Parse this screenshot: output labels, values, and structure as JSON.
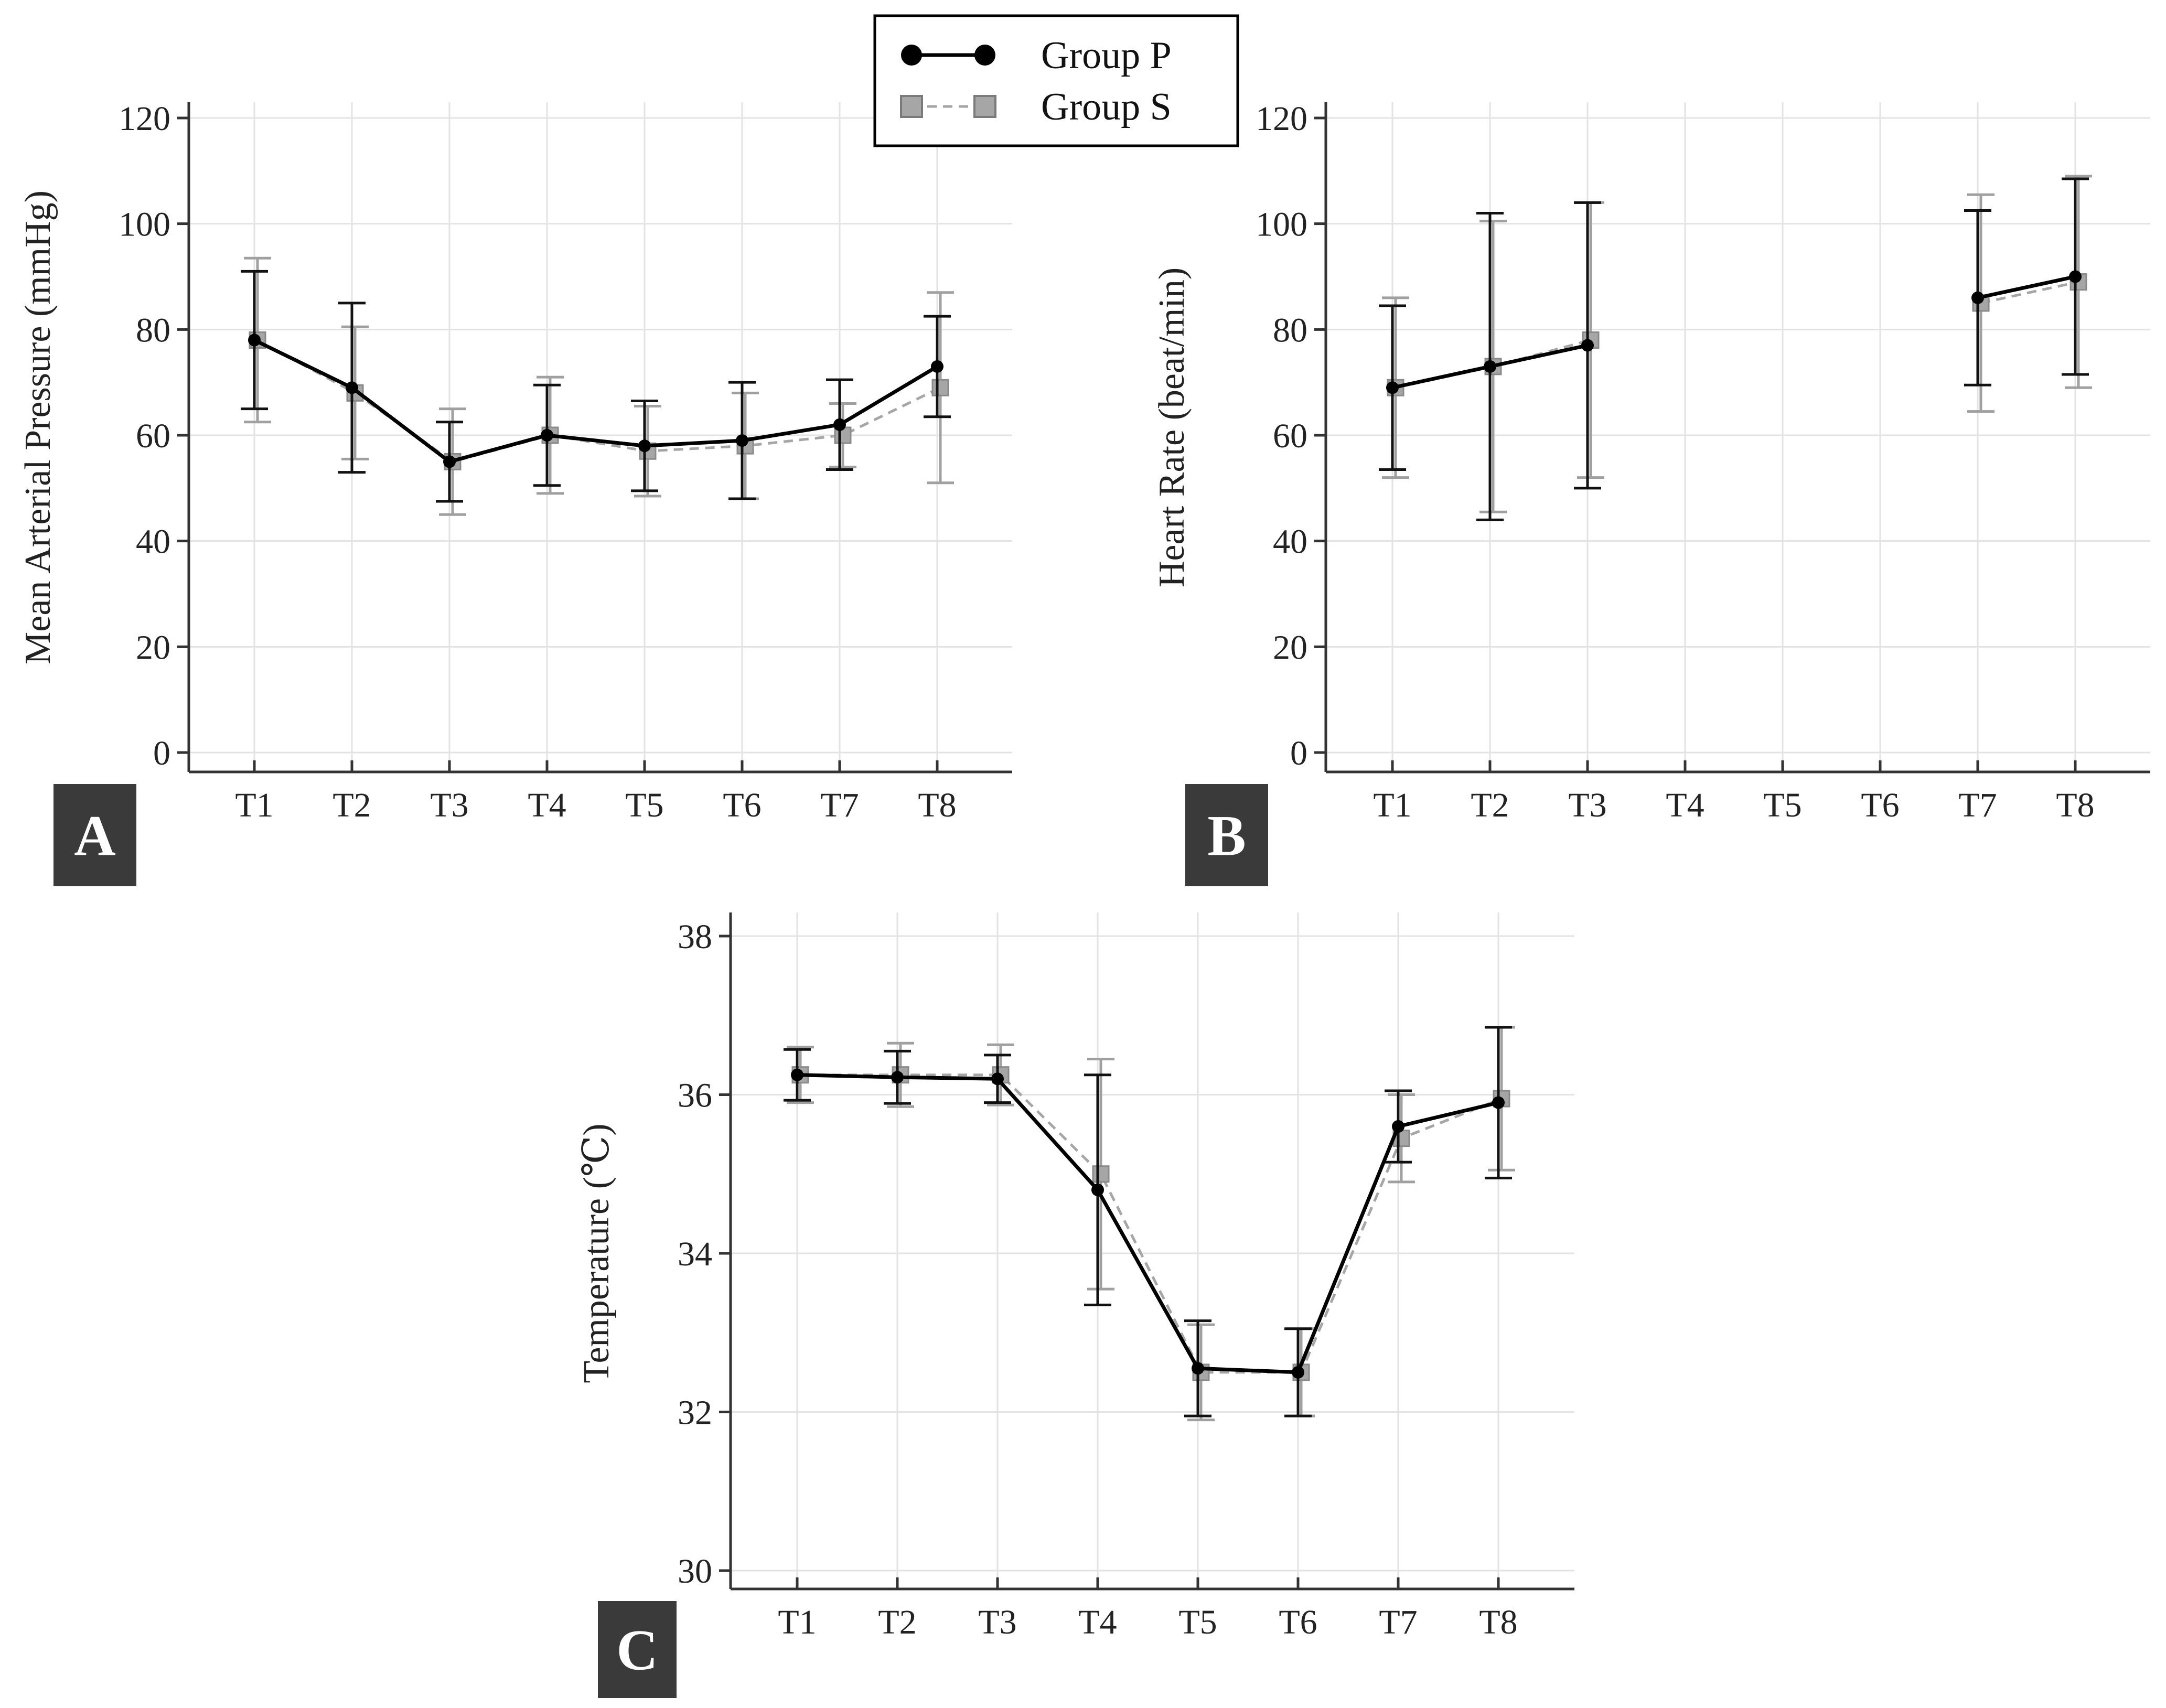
{
  "legend": {
    "items": [
      {
        "name": "Group P",
        "color": "#000000",
        "marker": "circle",
        "line": "solid"
      },
      {
        "name": "Group S",
        "color": "#a6a6a6",
        "marker": "square",
        "line": "dashed"
      }
    ]
  },
  "chart_data": [
    {
      "panel": "A",
      "type": "line",
      "ylabel": "Mean Arterial Pressure (mmHg)",
      "xlabel": "",
      "categories": [
        "T1",
        "T2",
        "T3",
        "T4",
        "T5",
        "T6",
        "T7",
        "T8"
      ],
      "ylim": [
        0,
        120
      ],
      "yticks": [
        0,
        20,
        40,
        60,
        80,
        100,
        120
      ],
      "grid": true,
      "series": [
        {
          "name": "Group P",
          "values": [
            78,
            69,
            55,
            60,
            58,
            59,
            62,
            73
          ],
          "err": [
            13,
            16,
            7.5,
            9.5,
            8.5,
            11,
            8.5,
            9.5
          ]
        },
        {
          "name": "Group S",
          "values": [
            78,
            68,
            55,
            60,
            57,
            58,
            60,
            69
          ],
          "err": [
            15.5,
            12.5,
            10,
            11,
            8.5,
            10,
            6,
            18
          ]
        }
      ]
    },
    {
      "panel": "B",
      "type": "line",
      "ylabel": "Heart Rate (beat/min)",
      "xlabel": "",
      "categories": [
        "T1",
        "T2",
        "T3",
        "T4",
        "T5",
        "T6",
        "T7",
        "T8"
      ],
      "ylim": [
        0,
        120
      ],
      "yticks": [
        0,
        20,
        40,
        60,
        80,
        100,
        120
      ],
      "grid": true,
      "series": [
        {
          "name": "Group P",
          "values": [
            69,
            73,
            77,
            null,
            null,
            null,
            86,
            90
          ],
          "err": [
            15.5,
            29,
            27,
            null,
            null,
            null,
            16.5,
            18.5
          ]
        },
        {
          "name": "Group S",
          "values": [
            69,
            73,
            78,
            null,
            null,
            null,
            85,
            89
          ],
          "err": [
            17,
            27.5,
            26,
            null,
            null,
            null,
            20.5,
            20
          ]
        }
      ]
    },
    {
      "panel": "C",
      "type": "line",
      "ylabel": "Temperature (℃)",
      "xlabel": "",
      "categories": [
        "T1",
        "T2",
        "T3",
        "T4",
        "T5",
        "T6",
        "T7",
        "T8"
      ],
      "ylim": [
        30,
        38
      ],
      "yticks": [
        30,
        32,
        34,
        36,
        38
      ],
      "grid": true,
      "series": [
        {
          "name": "Group P",
          "values": [
            36.25,
            36.22,
            36.2,
            34.8,
            32.55,
            32.5,
            35.6,
            35.9
          ],
          "err": [
            0.32,
            0.33,
            0.3,
            1.45,
            0.6,
            0.55,
            0.45,
            0.95
          ]
        },
        {
          "name": "Group S",
          "values": [
            36.25,
            36.25,
            36.25,
            35.0,
            32.5,
            32.5,
            35.45,
            35.95
          ],
          "err": [
            0.35,
            0.4,
            0.38,
            1.45,
            0.6,
            0.55,
            0.55,
            0.9
          ]
        }
      ]
    }
  ]
}
